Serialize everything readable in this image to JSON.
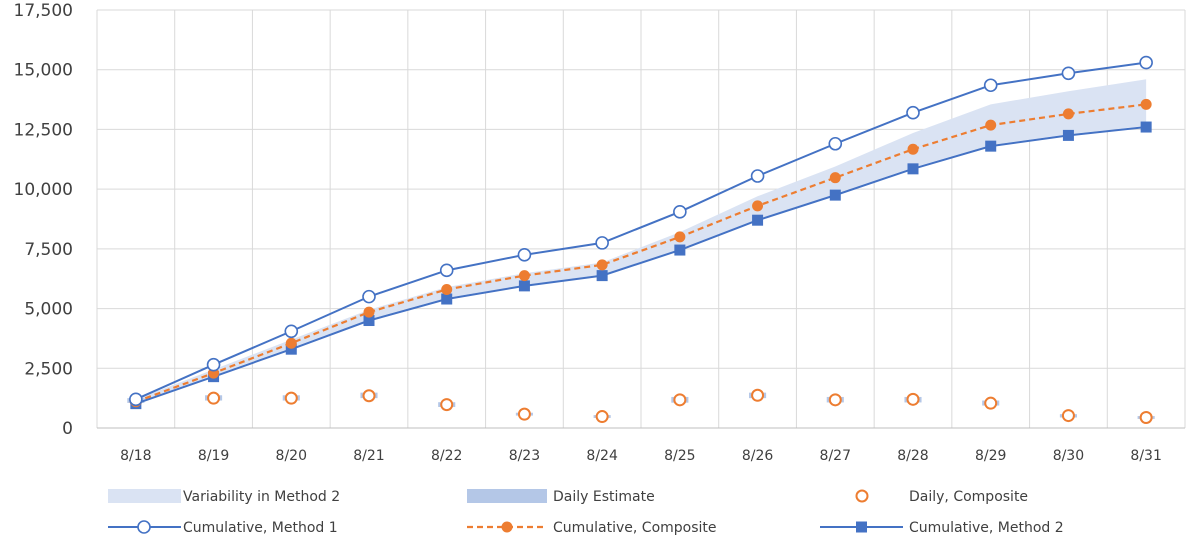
{
  "chart_data": {
    "type": "line",
    "categories": [
      "8/18",
      "8/19",
      "8/20",
      "8/21",
      "8/22",
      "8/23",
      "8/24",
      "8/25",
      "8/26",
      "8/27",
      "8/28",
      "8/29",
      "8/30",
      "8/31"
    ],
    "ylim": [
      0,
      17500
    ],
    "yticks": [
      0,
      2500,
      5000,
      7500,
      10000,
      12500,
      15000,
      17500
    ],
    "ytick_labels": [
      "0",
      "2,500",
      "5,000",
      "7,500",
      "10,000",
      "12,500",
      "15,000",
      "17,500"
    ],
    "grid": true,
    "legend_position": "bottom",
    "series": [
      {
        "name": "Variability in Method 2",
        "kind": "band",
        "color": "#dae3f3",
        "low": [
          1050,
          2200,
          3350,
          4550,
          5450,
          5980,
          6420,
          7480,
          8730,
          9800,
          10900,
          11850,
          12300,
          12650
        ],
        "high": [
          1200,
          2450,
          3700,
          4950,
          5900,
          6480,
          6930,
          8200,
          9700,
          10950,
          12350,
          13550,
          14100,
          14600
        ]
      },
      {
        "name": "Daily Estimate",
        "kind": "bar-range",
        "color": "#b4c7e7",
        "low": [
          1050,
          1150,
          1150,
          1250,
          880,
          520,
          420,
          1060,
          1250,
          1070,
          1070,
          940,
          440,
          380
        ],
        "high": [
          1250,
          1370,
          1370,
          1480,
          1080,
          640,
          540,
          1300,
          1480,
          1300,
          1300,
          1150,
          580,
          500
        ]
      },
      {
        "name": "Daily, Composite",
        "kind": "marker",
        "color": "#ed7d31",
        "values": [
          1150,
          1250,
          1250,
          1350,
          980,
          580,
          480,
          1180,
          1370,
          1180,
          1200,
          1040,
          520,
          440
        ]
      },
      {
        "name": "Cumulative, Method 1",
        "kind": "line-open-circle",
        "color": "#4472c4",
        "values": [
          1200,
          2650,
          4050,
          5500,
          6600,
          7250,
          7750,
          9050,
          10550,
          11900,
          13200,
          14350,
          14850,
          15300
        ]
      },
      {
        "name": "Cumulative, Composite",
        "kind": "line-dashed-dot",
        "color": "#ed7d31",
        "values": [
          1100,
          2300,
          3550,
          4850,
          5800,
          6380,
          6830,
          8000,
          9300,
          10480,
          11670,
          12680,
          13150,
          13550
        ]
      },
      {
        "name": "Cumulative, Method 2",
        "kind": "line-square",
        "color": "#4472c4",
        "values": [
          1020,
          2150,
          3300,
          4500,
          5400,
          5950,
          6380,
          7450,
          8700,
          9750,
          10850,
          11800,
          12250,
          12600
        ]
      }
    ]
  }
}
